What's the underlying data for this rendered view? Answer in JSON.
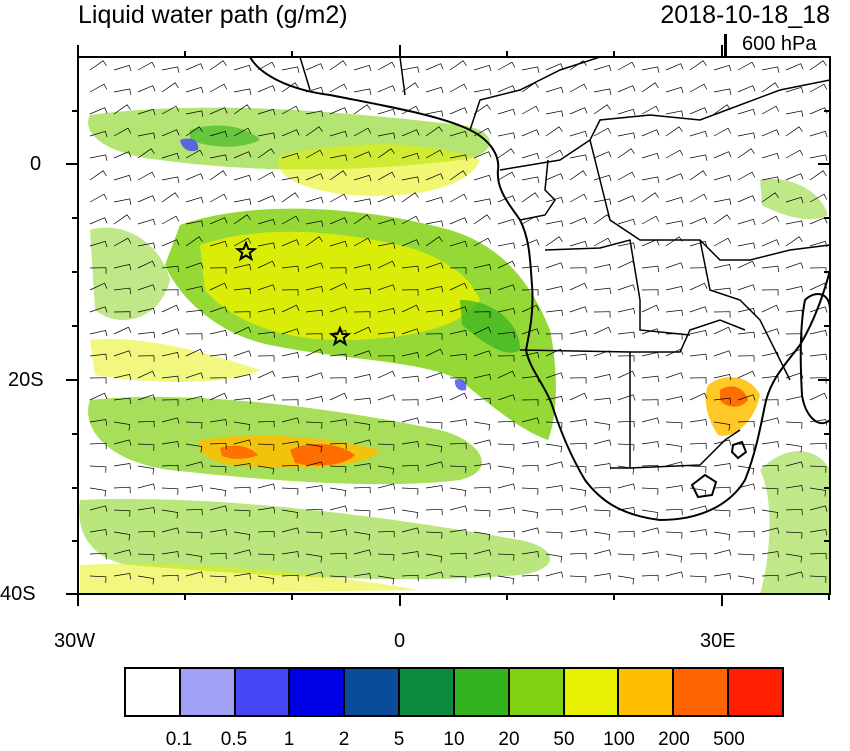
{
  "header": {
    "title": "Liquid water path (g/m2)",
    "datetime": "2018-10-18_18",
    "level": "600 hPa"
  },
  "axes": {
    "lat_labels": [
      "0",
      "20S",
      "40S"
    ],
    "lon_labels": [
      "30W",
      "0",
      "30E"
    ]
  },
  "markers": [
    {
      "name": "star-marker-north",
      "symbol": "star"
    },
    {
      "name": "star-marker-south",
      "symbol": "star"
    }
  ],
  "legend": {
    "colors": [
      "#ffffff",
      "#a0a0f5",
      "#4646f5",
      "#0000e6",
      "#0a4b9b",
      "#0a8c3c",
      "#32b41e",
      "#82d214",
      "#e6f000",
      "#ffbe00",
      "#ff6400",
      "#ff1e00"
    ],
    "labels": [
      "0.1",
      "0.5",
      "1",
      "2",
      "5",
      "10",
      "20",
      "50",
      "100",
      "200",
      "500"
    ]
  }
}
